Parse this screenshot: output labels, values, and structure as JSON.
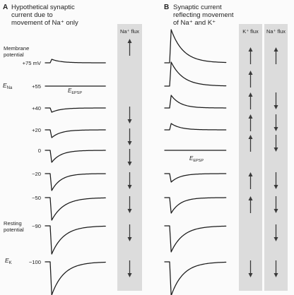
{
  "panel_a": {
    "letter": "A",
    "title_lines": [
      "Hypothetical synaptic",
      "current due to",
      "movement of Na⁺ only"
    ],
    "flux_header": "Na⁺ flux",
    "epsp_label_main": "E",
    "epsp_label_sub": "EPSP"
  },
  "panel_b": {
    "letter": "B",
    "title_lines": [
      "Synaptic current",
      "reflecting movement",
      "of Na⁺ and K⁺"
    ],
    "flux_header_k": "K⁺ flux",
    "flux_header_na": "Na⁺ flux",
    "epsp_label_main": "E",
    "epsp_label_sub": "EPSP"
  },
  "left_labels": {
    "membrane_potential": [
      "Membrane",
      "potential"
    ],
    "ena_main": "E",
    "ena_sub": "Na",
    "resting_potential": [
      "Resting",
      "potential"
    ],
    "ek_main": "E",
    "ek_sub": "K"
  },
  "rows": [
    {
      "potential": "+75 mV",
      "na_flux_a": "up",
      "k_flux_b": "up",
      "na_flux_b": "up"
    },
    {
      "potential": "+55",
      "na_flux_a": "none",
      "k_flux_b": "up",
      "na_flux_b": "none"
    },
    {
      "potential": "+40",
      "na_flux_a": "down",
      "k_flux_b": "up",
      "na_flux_b": "down"
    },
    {
      "potential": "+20",
      "na_flux_a": "down",
      "k_flux_b": "up",
      "na_flux_b": "down"
    },
    {
      "potential": "0",
      "na_flux_a": "down",
      "k_flux_b": "up",
      "na_flux_b": "down"
    },
    {
      "potential": "−20",
      "na_flux_a": "down",
      "k_flux_b": "up",
      "na_flux_b": "down"
    },
    {
      "potential": "−50",
      "na_flux_a": "down",
      "k_flux_b": "up",
      "na_flux_b": "down"
    },
    {
      "potential": "−90",
      "na_flux_a": "down",
      "k_flux_b": "none",
      "na_flux_b": "down"
    },
    {
      "potential": "−100",
      "na_flux_a": "down",
      "k_flux_b": "down",
      "na_flux_b": "down"
    }
  ],
  "colors": {
    "flux_column": "#dcdcdc",
    "trace": "#1a1a1a",
    "background": "#fbfbfb"
  }
}
